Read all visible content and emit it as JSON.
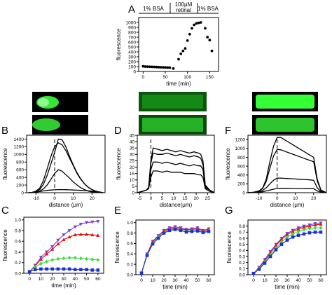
{
  "colors": {
    "purple": "#7b3fe0",
    "red": "#e01010",
    "green": "#3ddc3d",
    "blue": "#1c2fd8",
    "micro_green": "#49ff49",
    "axis": "#000000"
  },
  "chart_data": [
    {
      "panel": "A",
      "type": "scatter",
      "top_labels": [
        "1% BSA",
        "100μM",
        "retinal",
        "1% BSA"
      ],
      "xlabel": "time (min)",
      "ylabel": "fluorescence",
      "xlim": [
        -10,
        170
      ],
      "ylim": [
        0,
        1100
      ],
      "xticks": [
        0,
        50,
        100,
        150
      ],
      "yticks": [
        0,
        100,
        200,
        300,
        400,
        500,
        600,
        700,
        800,
        900,
        1000
      ],
      "xtick_labels": [
        "0",
        "50",
        "100",
        "150"
      ],
      "ytick_labels": [
        "0",
        "100",
        "200",
        "300",
        "400",
        "500",
        "600",
        "700",
        "800",
        "900",
        "1000"
      ],
      "x": [
        0,
        5,
        10,
        15,
        20,
        25,
        30,
        35,
        40,
        45,
        50,
        55,
        60,
        68,
        80,
        85,
        90,
        95,
        100,
        105,
        110,
        115,
        120,
        125,
        130,
        140,
        145,
        150,
        155
      ],
      "y": [
        105,
        100,
        98,
        96,
        94,
        92,
        90,
        88,
        86,
        84,
        82,
        80,
        78,
        60,
        250,
        360,
        420,
        470,
        630,
        760,
        880,
        950,
        980,
        990,
        1000,
        880,
        700,
        640,
        420
      ]
    },
    {
      "panel": "B",
      "type": "line",
      "xlabel": "distance (μm)",
      "ylabel": "fluorescence",
      "xlim": [
        -15,
        27
      ],
      "ylim": [
        0,
        1500
      ],
      "xticks": [
        -10,
        0,
        10,
        20
      ],
      "yticks": [
        0,
        200,
        400,
        600,
        800,
        1000,
        1200,
        1400
      ],
      "xtick_labels": [
        "-10",
        "0",
        "10",
        "20"
      ],
      "ytick_labels": [
        "0",
        "200",
        "400",
        "600",
        "800",
        "1000",
        "1200",
        "1400"
      ],
      "x": [
        -14,
        -12,
        -10,
        -8,
        -6,
        -4,
        -2,
        0,
        2,
        4,
        6,
        8,
        10,
        12,
        14,
        16,
        18,
        20,
        22,
        24,
        26
      ],
      "series": [
        {
          "values": [
            0,
            5,
            15,
            40,
            100,
            200,
            350,
            500,
            600,
            560,
            470,
            380,
            280,
            200,
            130,
            80,
            40,
            20,
            10,
            5,
            0
          ]
        },
        {
          "values": [
            0,
            10,
            30,
            80,
            220,
            450,
            750,
            1050,
            1400,
            1380,
            1200,
            950,
            720,
            520,
            360,
            230,
            140,
            80,
            40,
            15,
            0
          ]
        },
        {
          "values": [
            0,
            10,
            40,
            120,
            320,
            620,
            950,
            1200,
            1300,
            1250,
            1100,
            900,
            700,
            500,
            350,
            230,
            140,
            80,
            40,
            15,
            0
          ]
        },
        {
          "values": [
            0,
            5,
            15,
            30,
            45,
            60,
            70,
            75,
            80,
            80,
            78,
            75,
            70,
            65,
            60,
            55,
            50,
            40,
            30,
            20,
            0
          ]
        }
      ]
    },
    {
      "panel": "C",
      "type": "line",
      "xlabel": "time (min)",
      "ylabel": "fluorescence",
      "xlim": [
        -5,
        65
      ],
      "ylim": [
        0,
        1.05
      ],
      "xticks": [
        0,
        10,
        20,
        30,
        40,
        50,
        60
      ],
      "yticks": [
        0,
        0.2,
        0.4,
        0.6,
        0.8,
        1.0
      ],
      "xtick_labels": [
        "0",
        "10",
        "20",
        "30",
        "40",
        "50",
        "60"
      ],
      "ytick_labels": [
        "0.0",
        "0.2",
        "0.4",
        "0.6",
        "0.8",
        "1.0"
      ],
      "x": [
        0,
        5,
        10,
        15,
        20,
        25,
        30,
        35,
        40,
        45,
        50,
        55,
        60
      ],
      "series": [
        {
          "color": "purple",
          "marker": "triangle-down",
          "values": [
            0.03,
            0.15,
            0.3,
            0.4,
            0.5,
            0.62,
            0.72,
            0.8,
            0.87,
            0.92,
            0.95,
            0.96,
            0.97
          ]
        },
        {
          "color": "red",
          "marker": "triangle-up",
          "values": [
            0.03,
            0.14,
            0.26,
            0.36,
            0.45,
            0.55,
            0.63,
            0.68,
            0.72,
            0.73,
            0.73,
            0.72,
            0.71
          ]
        },
        {
          "color": "green",
          "marker": "diamond",
          "values": [
            0.03,
            0.12,
            0.18,
            0.22,
            0.25,
            0.27,
            0.28,
            0.29,
            0.29,
            0.28,
            0.27,
            0.26,
            0.25
          ]
        },
        {
          "color": "blue",
          "marker": "square",
          "values": [
            0.03,
            0.07,
            0.08,
            0.08,
            0.08,
            0.08,
            0.08,
            0.08,
            0.07,
            0.07,
            0.07,
            0.06,
            0.06
          ]
        }
      ]
    },
    {
      "panel": "D",
      "type": "line",
      "xlabel": "distance(μm)",
      "ylabel": "fluorescence",
      "xlim": [
        -6,
        28
      ],
      "ylim": [
        0,
        45
      ],
      "xticks": [
        -5,
        0,
        5,
        10,
        15,
        20,
        25
      ],
      "yticks": [
        0,
        5,
        10,
        15,
        20,
        25,
        30,
        35,
        40,
        45
      ],
      "xtick_labels": [
        "-5",
        "0",
        "5",
        "10",
        "15",
        "20",
        "25"
      ],
      "ytick_labels": [
        "0",
        "5",
        "10",
        "15",
        "20",
        "25",
        "30",
        "35",
        "40",
        "45"
      ],
      "x": [
        -6,
        -4,
        -2,
        -1,
        0,
        1,
        3,
        5,
        7,
        9,
        11,
        13,
        15,
        17,
        19,
        21,
        22,
        23,
        24,
        26,
        28
      ],
      "series": [
        {
          "values": [
            0,
            1,
            2,
            4,
            25,
            35,
            34,
            33,
            34,
            33,
            32,
            33,
            32,
            31,
            32,
            31,
            30,
            25,
            6,
            2,
            0
          ]
        },
        {
          "values": [
            0,
            1,
            2,
            4,
            23,
            31,
            30,
            30,
            31,
            30,
            29,
            30,
            29,
            28,
            29,
            28,
            27,
            22,
            5,
            2,
            0
          ]
        },
        {
          "values": [
            0,
            1,
            2,
            4,
            18,
            24,
            24,
            23,
            24,
            23,
            22,
            23,
            22,
            21,
            22,
            21,
            21,
            18,
            4,
            2,
            0
          ]
        },
        {
          "values": [
            0,
            1,
            2,
            3,
            12,
            17,
            17,
            16,
            17,
            16,
            16,
            16,
            15,
            15,
            15,
            14,
            14,
            12,
            3,
            1,
            0
          ]
        }
      ]
    },
    {
      "panel": "E",
      "type": "line",
      "xlabel": "time (min)",
      "ylabel": "fluorescence",
      "xlim": [
        -5,
        65
      ],
      "ylim": [
        0,
        1.05
      ],
      "xticks": [
        0,
        10,
        20,
        30,
        40,
        50,
        60
      ],
      "yticks": [
        0,
        0.2,
        0.4,
        0.6,
        0.8,
        1.0
      ],
      "xtick_labels": [
        "0",
        "10",
        "20",
        "30",
        "40",
        "50",
        "60"
      ],
      "ytick_labels": [
        "0.0",
        "0.2",
        "0.4",
        "0.6",
        "0.8",
        "1.0"
      ],
      "x": [
        0,
        5,
        10,
        15,
        20,
        25,
        30,
        35,
        40,
        45,
        50,
        55,
        60
      ],
      "series": [
        {
          "color": "purple",
          "marker": "triangle-down",
          "values": [
            0.03,
            0.4,
            0.64,
            0.75,
            0.85,
            0.9,
            0.92,
            0.9,
            0.87,
            0.88,
            0.9,
            0.85,
            0.88
          ]
        },
        {
          "color": "red",
          "marker": "triangle-up",
          "values": [
            0.03,
            0.39,
            0.63,
            0.74,
            0.84,
            0.88,
            0.9,
            0.88,
            0.86,
            0.87,
            0.88,
            0.84,
            0.87
          ]
        },
        {
          "color": "green",
          "marker": "diamond",
          "values": [
            0.03,
            0.38,
            0.6,
            0.72,
            0.81,
            0.86,
            0.88,
            0.86,
            0.83,
            0.84,
            0.85,
            0.82,
            0.84
          ]
        },
        {
          "color": "blue",
          "marker": "square",
          "values": [
            0.03,
            0.37,
            0.59,
            0.7,
            0.8,
            0.85,
            0.87,
            0.85,
            0.82,
            0.83,
            0.84,
            0.81,
            0.83
          ]
        }
      ]
    },
    {
      "panel": "F",
      "type": "line",
      "xlabel": "distance (μm)",
      "ylabel": "fluorescence",
      "xlim": [
        -16,
        27
      ],
      "ylim": [
        0,
        1300
      ],
      "xticks": [
        -10,
        0,
        10,
        20
      ],
      "yticks": [
        0,
        200,
        400,
        600,
        800,
        1000,
        1200
      ],
      "xtick_labels": [
        "-10",
        "0",
        "10",
        "20"
      ],
      "ytick_labels": [
        "0",
        "200",
        "400",
        "600",
        "800",
        "1000",
        "1200"
      ],
      "x": [
        -16,
        -13,
        -10,
        -8,
        -6,
        -4,
        -2,
        0,
        2,
        4,
        6,
        8,
        10,
        12,
        14,
        16,
        18,
        20,
        22,
        24,
        27
      ],
      "series": [
        {
          "values": [
            0,
            10,
            40,
            100,
            300,
            700,
            1050,
            1250,
            1250,
            1200,
            1150,
            1100,
            1050,
            1000,
            950,
            900,
            850,
            800,
            300,
            60,
            0
          ]
        },
        {
          "values": [
            0,
            10,
            35,
            90,
            250,
            550,
            830,
            980,
            970,
            940,
            910,
            880,
            850,
            820,
            790,
            760,
            730,
            700,
            260,
            50,
            0
          ]
        },
        {
          "values": [
            0,
            5,
            20,
            50,
            110,
            200,
            280,
            330,
            330,
            325,
            320,
            315,
            310,
            305,
            300,
            295,
            290,
            280,
            110,
            25,
            0
          ]
        },
        {
          "values": [
            0,
            5,
            10,
            20,
            40,
            60,
            80,
            95,
            100,
            100,
            98,
            96,
            95,
            94,
            93,
            92,
            91,
            90,
            40,
            10,
            0
          ]
        }
      ]
    },
    {
      "panel": "G",
      "type": "line",
      "xlabel": "time (min)",
      "ylabel": "fluorescence",
      "xlim": [
        -5,
        65
      ],
      "ylim": [
        0,
        0.9
      ],
      "xticks": [
        0,
        10,
        20,
        30,
        40,
        50,
        60
      ],
      "yticks": [
        0,
        0.1,
        0.2,
        0.3,
        0.4,
        0.5,
        0.6,
        0.7,
        0.8
      ],
      "xtick_labels": [
        "0",
        "10",
        "20",
        "30",
        "40",
        "50",
        "60"
      ],
      "ytick_labels": [
        "0.0",
        "0.1",
        "0.2",
        "0.3",
        "0.4",
        "0.5",
        "0.6",
        "0.7",
        "0.8"
      ],
      "x": [
        0,
        5,
        10,
        15,
        20,
        25,
        30,
        35,
        40,
        45,
        50,
        55,
        60
      ],
      "series": [
        {
          "color": "purple",
          "marker": "triangle-down",
          "values": [
            0.02,
            0.12,
            0.25,
            0.38,
            0.5,
            0.6,
            0.68,
            0.73,
            0.77,
            0.8,
            0.82,
            0.84,
            0.85
          ]
        },
        {
          "color": "red",
          "marker": "triangle-up",
          "values": [
            0.02,
            0.11,
            0.23,
            0.36,
            0.48,
            0.58,
            0.66,
            0.71,
            0.75,
            0.78,
            0.8,
            0.82,
            0.83
          ]
        },
        {
          "color": "green",
          "marker": "diamond",
          "values": [
            0.02,
            0.1,
            0.21,
            0.33,
            0.44,
            0.54,
            0.62,
            0.67,
            0.71,
            0.74,
            0.76,
            0.77,
            0.77
          ]
        },
        {
          "color": "blue",
          "marker": "square",
          "values": [
            0.02,
            0.09,
            0.19,
            0.3,
            0.41,
            0.5,
            0.57,
            0.62,
            0.65,
            0.67,
            0.69,
            0.7,
            0.7
          ]
        }
      ]
    }
  ]
}
